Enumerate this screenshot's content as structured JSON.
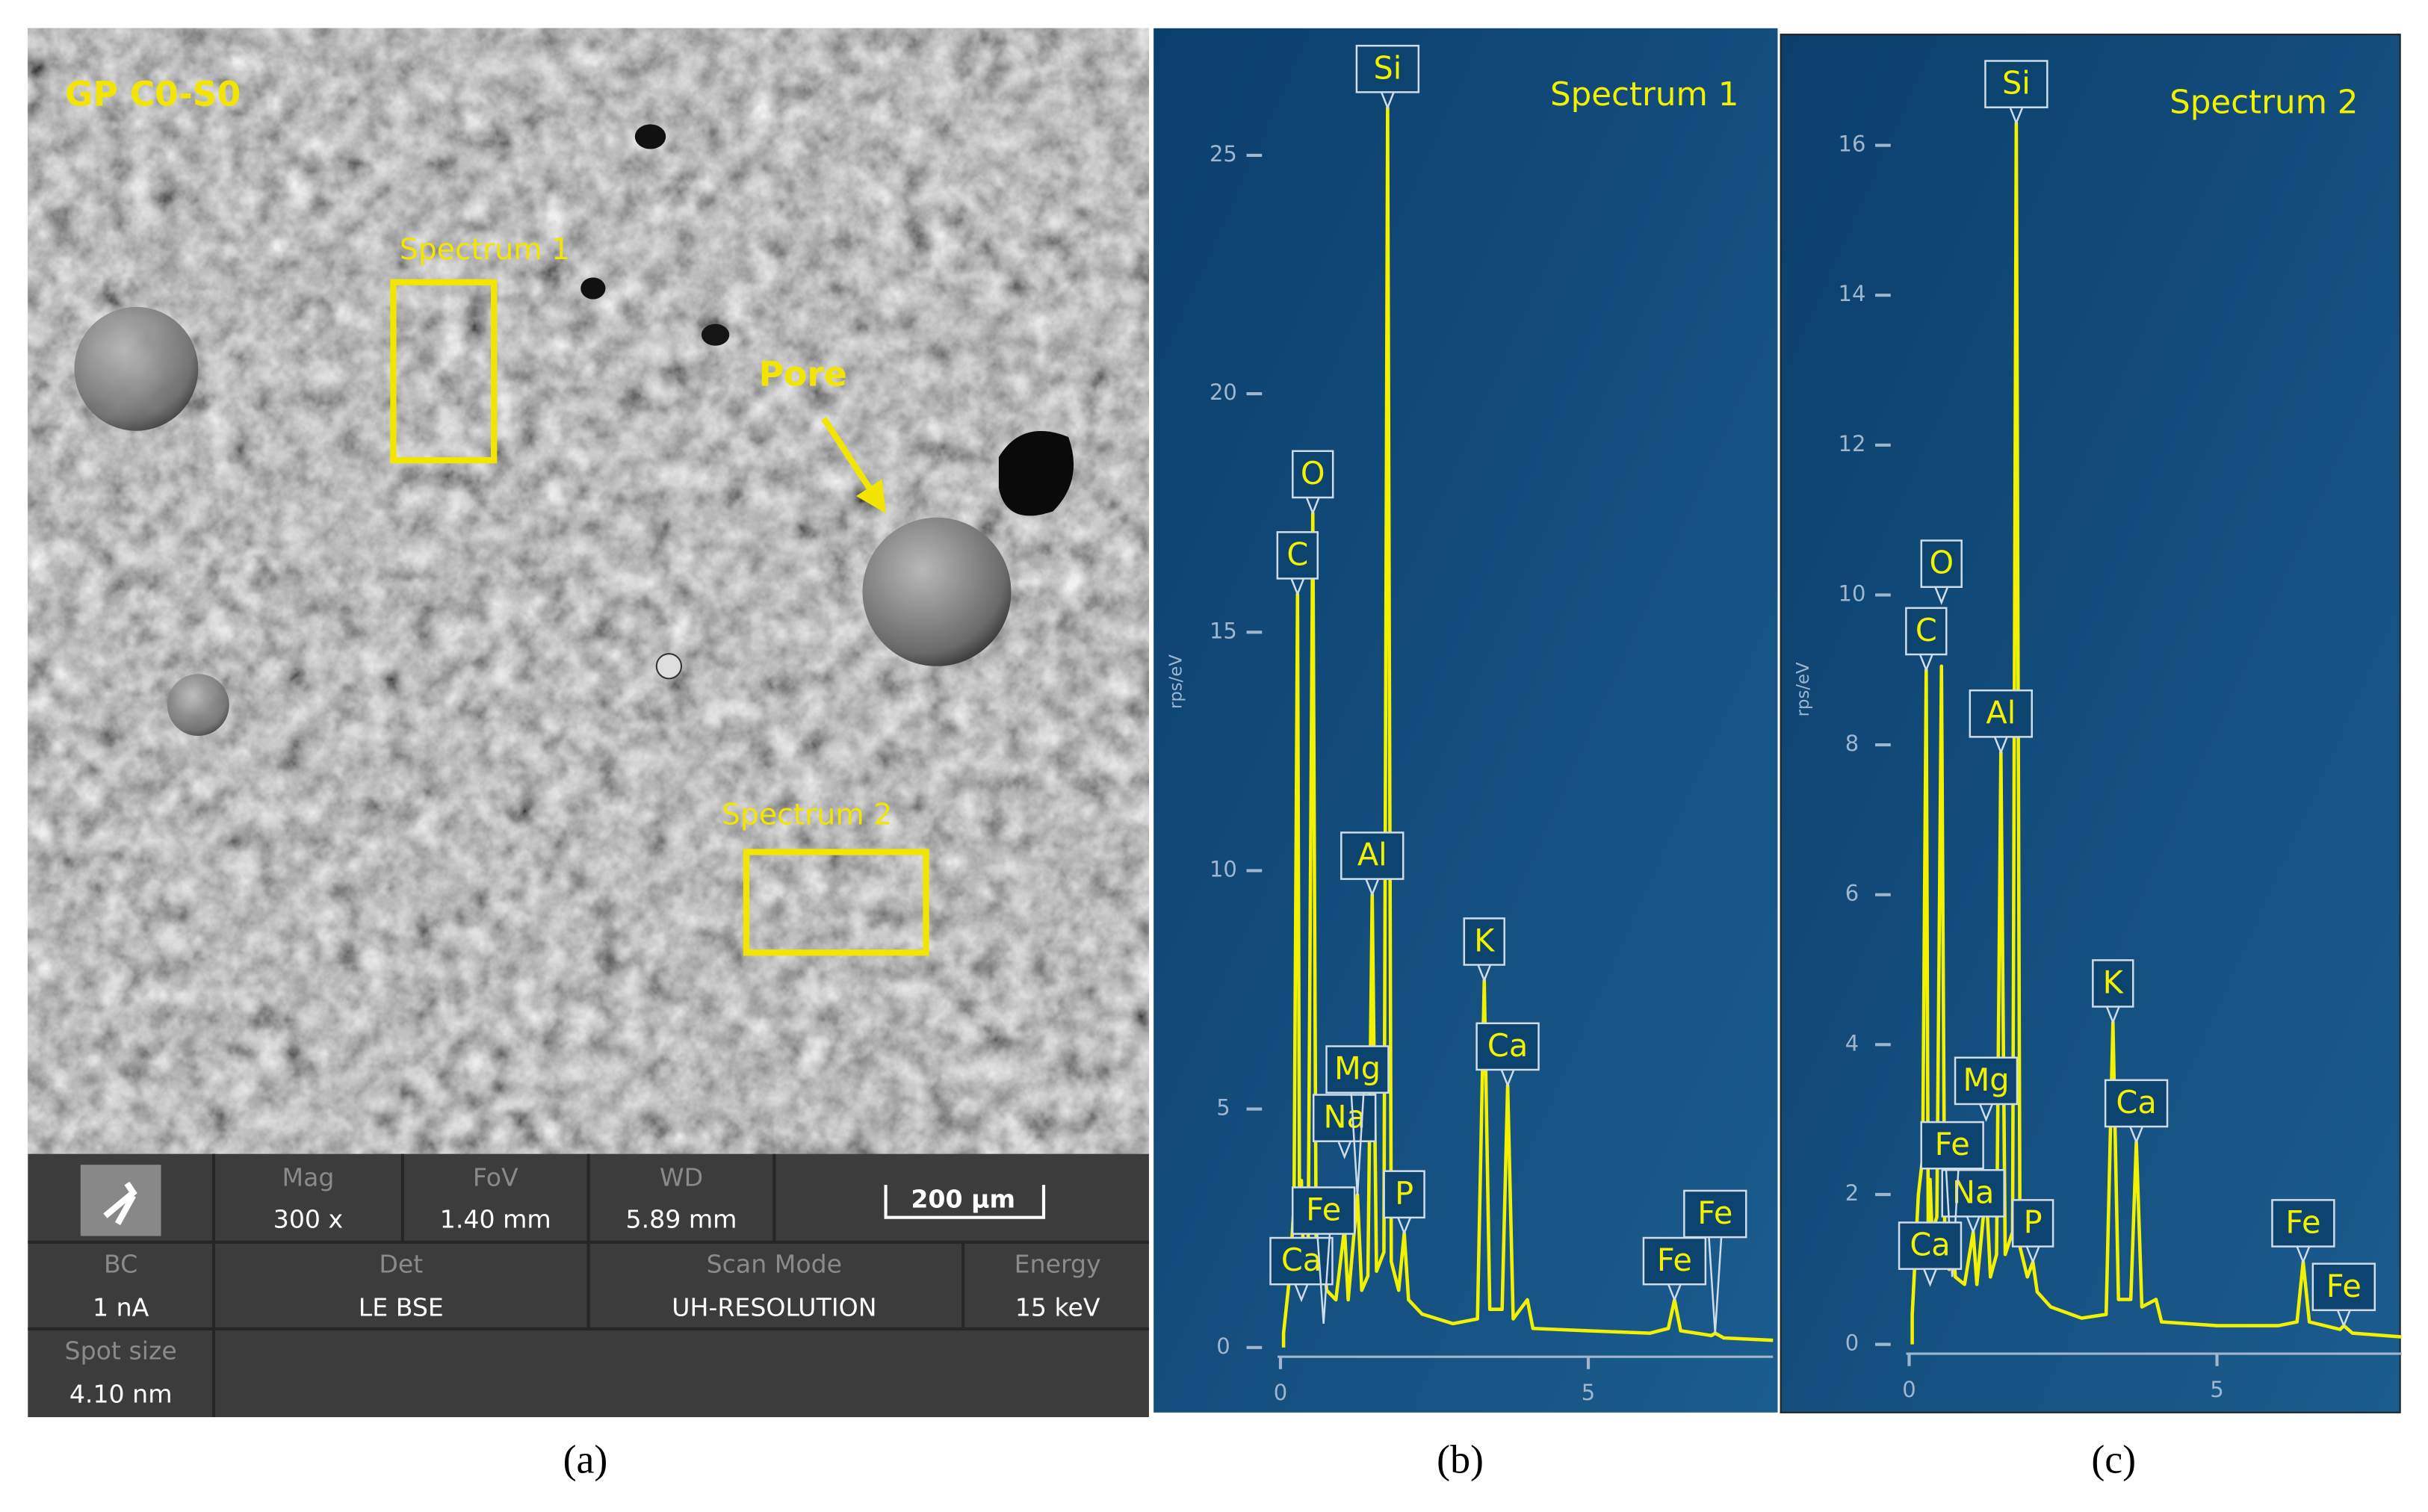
{
  "sem_image": {
    "title": "GP C0-S0",
    "regions": [
      {
        "label": "Spectrum 1"
      },
      {
        "label": "Spectrum 2"
      }
    ],
    "annotation": "Pore",
    "scale_bar": "200 μm",
    "info": [
      {
        "label": "Mag",
        "value": "300 x"
      },
      {
        "label": "FoV",
        "value": "1.40 mm"
      },
      {
        "label": "WD",
        "value": "5.89 mm"
      },
      {
        "label": "BC",
        "value": "1 nA"
      },
      {
        "label": "Det",
        "value": "LE BSE"
      },
      {
        "label": "Scan Mode",
        "value": "UH-RESOLUTION"
      },
      {
        "label": "Energy",
        "value": "15 keV"
      },
      {
        "label": "Spot size",
        "value": "4.10 nm"
      }
    ]
  },
  "chart_data": [
    {
      "type": "line",
      "title": "Spectrum 1",
      "y_label": "rps/eV",
      "color": "#f2f200",
      "x": [
        0.05,
        0.15,
        0.22,
        0.277,
        0.31,
        0.34,
        0.37,
        0.45,
        0.525,
        0.58,
        0.65,
        0.7,
        0.75,
        0.9,
        1.04,
        1.1,
        1.25,
        1.32,
        1.42,
        1.49,
        1.56,
        1.68,
        1.74,
        1.8,
        1.92,
        2.01,
        2.08,
        2.3,
        2.8,
        3.2,
        3.31,
        3.4,
        3.6,
        3.69,
        3.78,
        4.01,
        4.1,
        5.0,
        6.0,
        6.3,
        6.4,
        6.5,
        7.0,
        7.06,
        7.2,
        8.0
      ],
      "values": [
        0.3,
        1.5,
        3.0,
        15.8,
        2.5,
        3.5,
        2.0,
        2.2,
        17.5,
        2.0,
        1.5,
        2.0,
        1.2,
        1.0,
        2.5,
        1.0,
        3.2,
        1.2,
        1.5,
        9.5,
        1.6,
        2.0,
        26.0,
        1.8,
        1.2,
        2.4,
        1.0,
        0.7,
        0.5,
        0.6,
        7.7,
        0.8,
        0.8,
        5.5,
        0.6,
        1.0,
        0.4,
        0.35,
        0.3,
        0.4,
        1.0,
        0.35,
        0.25,
        0.3,
        0.2,
        0.15
      ],
      "peak_labels": [
        {
          "text": "Si",
          "x": 1.74,
          "y": 26.0
        },
        {
          "text": "O",
          "x": 0.525,
          "y": 17.5
        },
        {
          "text": "C",
          "x": 0.277,
          "y": 15.8
        },
        {
          "text": "Al",
          "x": 1.49,
          "y": 9.5
        },
        {
          "text": "K",
          "x": 3.31,
          "y": 7.7
        },
        {
          "text": "Ca",
          "x": 3.69,
          "y": 5.5
        },
        {
          "text": "Na",
          "x": 1.04,
          "y": 4.0
        },
        {
          "text": "Mg",
          "x": 1.25,
          "y": 3.2
        },
        {
          "text": "P",
          "x": 2.01,
          "y": 2.4
        },
        {
          "text": "Ca",
          "x": 0.34,
          "y": 1.0
        },
        {
          "text": "Fe",
          "x": 0.7,
          "y": 0.5
        },
        {
          "text": "Fe",
          "x": 6.4,
          "y": 1.0
        },
        {
          "text": "Fe",
          "x": 7.06,
          "y": 0.3
        }
      ],
      "xlim": [
        -0.3,
        8.0
      ],
      "ylim": [
        0,
        27.6
      ],
      "xticks": [
        0,
        5
      ],
      "yticks": [
        0,
        5,
        10,
        15,
        20,
        25
      ]
    },
    {
      "type": "line",
      "title": "Spectrum 2",
      "y_label": "rps/eV",
      "color": "#f2f200",
      "x": [
        0.05,
        0.15,
        0.22,
        0.277,
        0.31,
        0.34,
        0.37,
        0.45,
        0.525,
        0.58,
        0.65,
        0.7,
        0.75,
        0.9,
        1.04,
        1.1,
        1.25,
        1.32,
        1.42,
        1.49,
        1.56,
        1.68,
        1.74,
        1.8,
        1.92,
        2.01,
        2.08,
        2.3,
        2.8,
        3.2,
        3.31,
        3.4,
        3.6,
        3.69,
        3.78,
        4.01,
        4.1,
        5.0,
        6.0,
        6.3,
        6.4,
        6.5,
        7.0,
        7.06,
        7.2,
        8.0
      ],
      "values": [
        0.4,
        2.0,
        2.5,
        9.0,
        1.5,
        2.2,
        1.5,
        1.7,
        9.05,
        1.2,
        1.0,
        1.5,
        0.9,
        0.8,
        1.5,
        0.8,
        2.1,
        0.9,
        1.2,
        7.9,
        1.2,
        1.5,
        16.3,
        1.3,
        0.9,
        1.1,
        0.7,
        0.5,
        0.35,
        0.4,
        4.3,
        0.6,
        0.6,
        2.7,
        0.5,
        0.6,
        0.3,
        0.25,
        0.25,
        0.3,
        1.1,
        0.3,
        0.2,
        0.25,
        0.15,
        0.1
      ],
      "peak_labels": [
        {
          "text": "Si",
          "x": 1.74,
          "y": 16.3
        },
        {
          "text": "O",
          "x": 0.525,
          "y": 9.9
        },
        {
          "text": "C",
          "x": 0.277,
          "y": 9.0
        },
        {
          "text": "Al",
          "x": 1.49,
          "y": 7.9
        },
        {
          "text": "K",
          "x": 3.31,
          "y": 4.3
        },
        {
          "text": "Ca",
          "x": 3.69,
          "y": 2.7
        },
        {
          "text": "Mg",
          "x": 1.25,
          "y": 3.0
        },
        {
          "text": "Na",
          "x": 1.04,
          "y": 1.5
        },
        {
          "text": "Fe",
          "x": 0.7,
          "y": 0.9
        },
        {
          "text": "P",
          "x": 2.01,
          "y": 1.1
        },
        {
          "text": "Ca",
          "x": 0.34,
          "y": 0.8
        },
        {
          "text": "Fe",
          "x": 6.4,
          "y": 1.1
        },
        {
          "text": "Fe",
          "x": 7.06,
          "y": 0.25
        }
      ],
      "xlim": [
        -0.3,
        8.0
      ],
      "ylim": [
        0,
        17.5
      ],
      "xticks": [
        0,
        5
      ],
      "yticks": [
        0,
        2,
        4,
        6,
        8,
        10,
        12,
        14,
        16
      ]
    }
  ],
  "captions": [
    "(a)",
    "(b)",
    "(c)"
  ]
}
